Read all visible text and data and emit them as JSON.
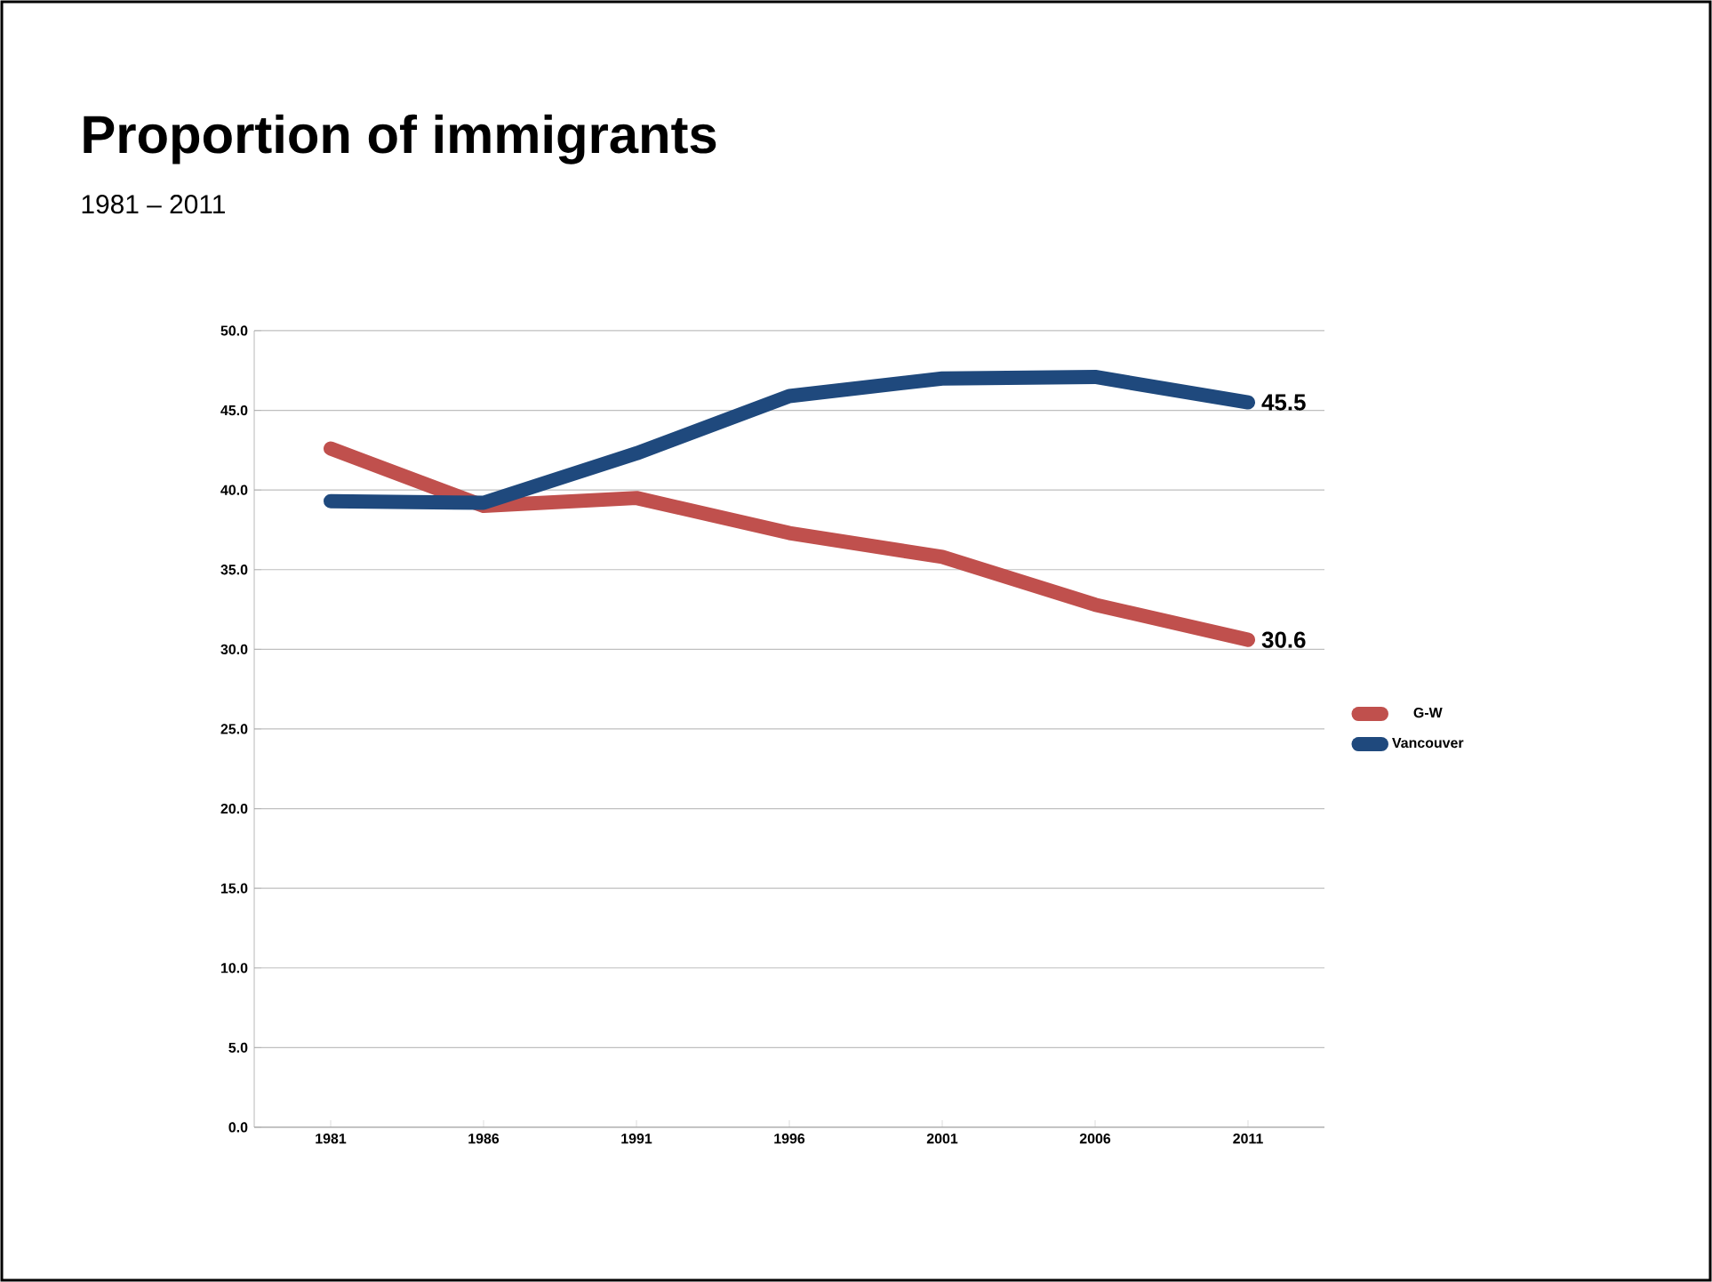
{
  "chart_data": {
    "type": "line",
    "title": "Proportion of immigrants",
    "subtitle": "1981 – 2011",
    "categories": [
      "1981",
      "1986",
      "1991",
      "1996",
      "2001",
      "2006",
      "2011"
    ],
    "series": [
      {
        "name": "G-W",
        "color": "#c0504d",
        "values": [
          42.6,
          39.0,
          39.5,
          37.3,
          35.8,
          32.8,
          30.6
        ],
        "value_labels": [
          null,
          null,
          null,
          null,
          null,
          null,
          "30.6"
        ]
      },
      {
        "name": "Vancouver",
        "color": "#1f497d",
        "values": [
          39.3,
          39.2,
          42.3,
          45.9,
          47.0,
          47.1,
          45.5
        ],
        "value_labels": [
          null,
          null,
          null,
          null,
          null,
          null,
          "45.5"
        ]
      }
    ],
    "ylim": [
      0,
      50
    ],
    "yticks": [
      {
        "value": 0,
        "label": "0.0"
      },
      {
        "value": 5,
        "label": "5.0"
      },
      {
        "value": 10,
        "label": "10.0"
      },
      {
        "value": 15,
        "label": "15.0"
      },
      {
        "value": 20,
        "label": "20.0"
      },
      {
        "value": 25,
        "label": "25.0"
      },
      {
        "value": 30,
        "label": "30.0"
      },
      {
        "value": 35,
        "label": "35.0"
      },
      {
        "value": 40,
        "label": "40.0"
      },
      {
        "value": 45,
        "label": "45.0"
      },
      {
        "value": 50,
        "label": "50.0"
      }
    ],
    "grid": "y",
    "legend": "right",
    "marker": "none",
    "line_style": "solid"
  }
}
